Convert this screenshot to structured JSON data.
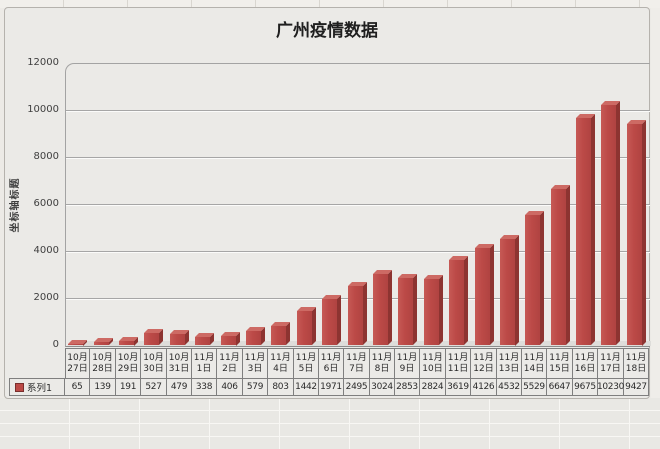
{
  "chart": {
    "title": "广州疫情数据",
    "y_axis_title": "坐标轴标题",
    "legend_label": "系列1",
    "y_ticks": [
      0,
      2000,
      4000,
      6000,
      8000,
      10000,
      12000
    ],
    "colors": {
      "bar_front": "#BC4A47",
      "bar_side": "#8D3431",
      "bar_top": "#CD6A64",
      "legend_marker": "#BC4A47",
      "chart_background": "#EBEAE7",
      "gridline": "#A6A6A6"
    }
  },
  "chart_data": {
    "type": "bar",
    "style": "3d-column",
    "title": "广州疫情数据",
    "xlabel": "",
    "ylabel": "坐标轴标题",
    "ylim": [
      0,
      12000
    ],
    "ytick_step": 2000,
    "grid": true,
    "data_table_shown": true,
    "legend_position": "data-table-left",
    "categories": [
      "10月27日",
      "10月28日",
      "10月29日",
      "10月30日",
      "10月31日",
      "11月1日",
      "11月2日",
      "11月3日",
      "11月4日",
      "11月5日",
      "11月6日",
      "11月7日",
      "11月8日",
      "11月9日",
      "11月10日",
      "11月11日",
      "11月12日",
      "11月13日",
      "11月14日",
      "11月15日",
      "11月16日",
      "11月17日",
      "11月18日"
    ],
    "series": [
      {
        "name": "系列1",
        "values": [
          65,
          139,
          191,
          527,
          479,
          338,
          406,
          579,
          803,
          1442,
          1971,
          2495,
          3024,
          2853,
          2824,
          3619,
          4126,
          4532,
          5529,
          6647,
          9675,
          10230,
          9427
        ]
      }
    ]
  }
}
